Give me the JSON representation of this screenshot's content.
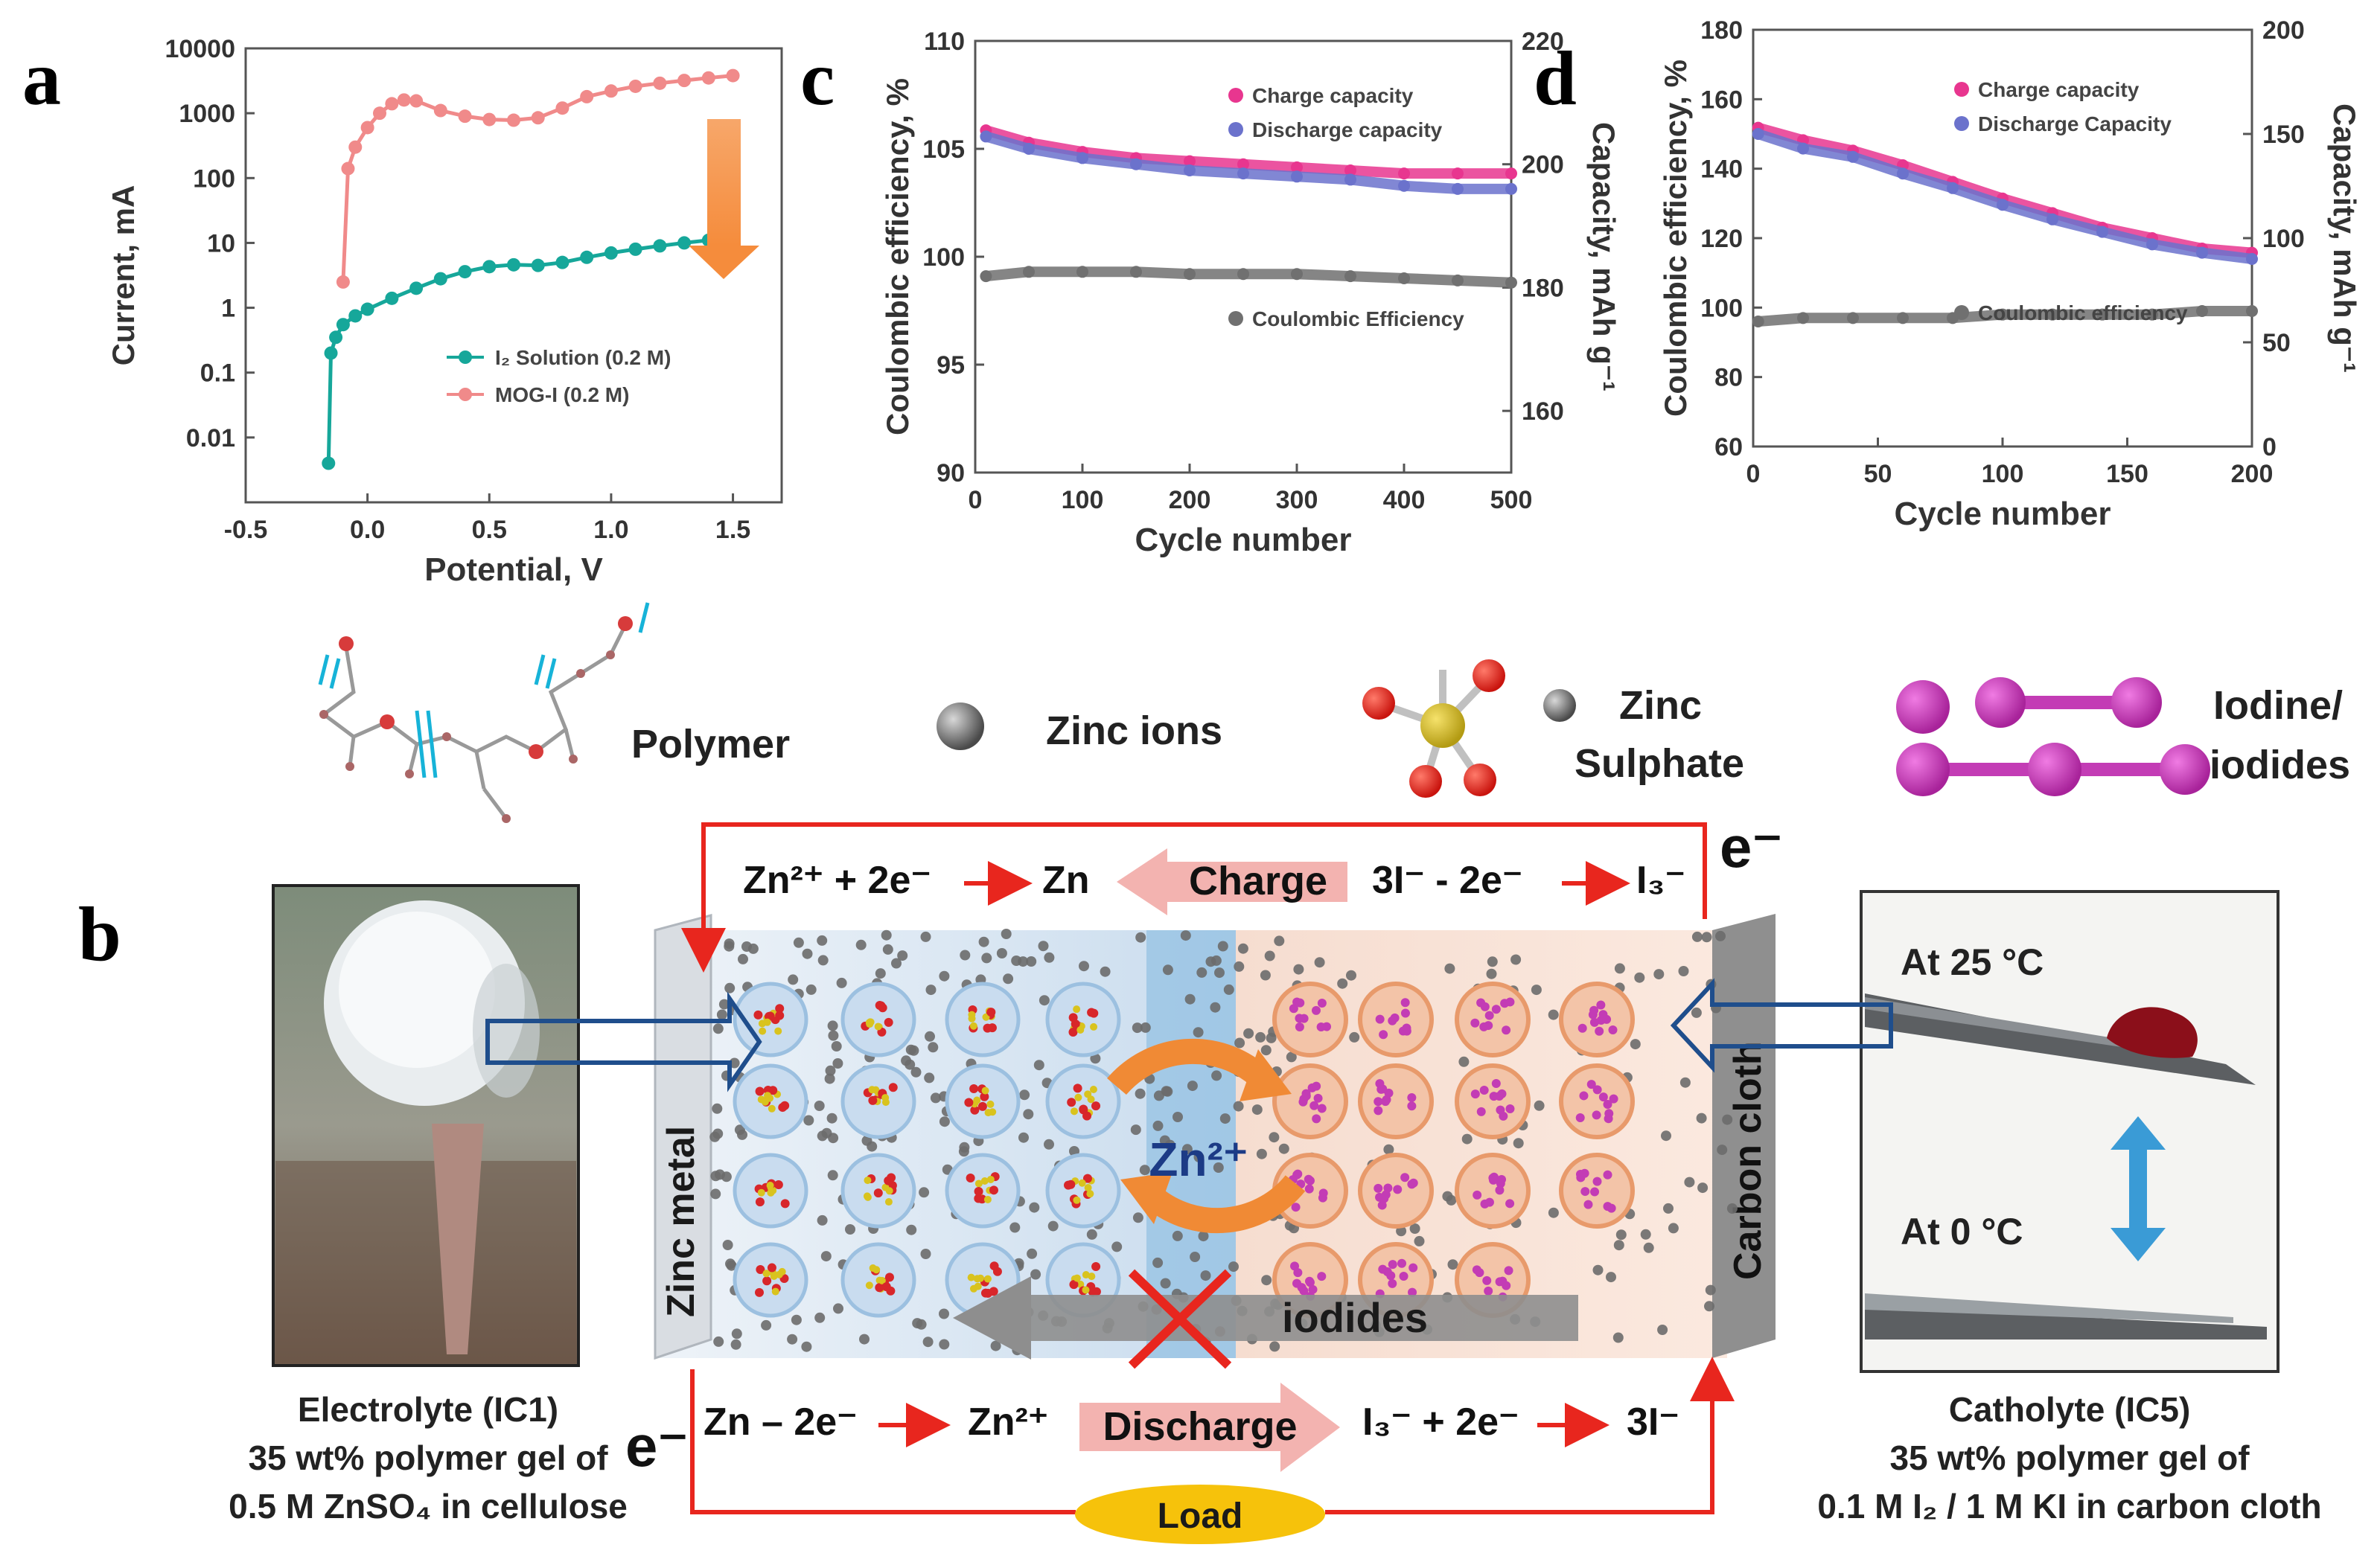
{
  "panel_labels": {
    "a": "a",
    "b": "b",
    "c": "c",
    "d": "d"
  },
  "chart_data": [
    {
      "type": "line",
      "panel": "a",
      "xlabel": "Potential, V",
      "ylabel": "Current, mA",
      "yscale": "log",
      "xlim": [
        -0.5,
        1.7
      ],
      "ylim": [
        0.001,
        10000
      ],
      "xticks": [
        "-0.5",
        "0.0",
        "0.5",
        "1.0",
        "1.5"
      ],
      "yticks": [
        "10000",
        "1000",
        "100",
        "10",
        "1",
        "0.1",
        "0.01"
      ],
      "legend_position": "lower-right",
      "series": [
        {
          "name": "I₂ Solution (0.2 M)",
          "color": "#16a79a",
          "x": [
            -0.16,
            -0.15,
            -0.13,
            -0.1,
            -0.05,
            0.0,
            0.1,
            0.2,
            0.3,
            0.4,
            0.5,
            0.6,
            0.7,
            0.8,
            0.9,
            1.0,
            1.1,
            1.2,
            1.3,
            1.4,
            1.5
          ],
          "y": [
            0.004,
            0.2,
            0.35,
            0.55,
            0.75,
            0.95,
            1.4,
            2.0,
            2.8,
            3.6,
            4.3,
            4.6,
            4.5,
            5.0,
            6.0,
            7.0,
            8.0,
            9.0,
            10.0,
            11.0,
            12.0
          ]
        },
        {
          "name": "MOG-I (0.2 M)",
          "color": "#f08a8a",
          "x": [
            -0.1,
            -0.08,
            -0.05,
            0.0,
            0.05,
            0.1,
            0.15,
            0.2,
            0.3,
            0.4,
            0.5,
            0.6,
            0.7,
            0.8,
            0.9,
            1.0,
            1.1,
            1.2,
            1.3,
            1.4,
            1.5
          ],
          "y": [
            2.5,
            140,
            300,
            600,
            1000,
            1400,
            1600,
            1550,
            1100,
            900,
            800,
            780,
            850,
            1200,
            1800,
            2200,
            2600,
            2900,
            3200,
            3500,
            3800
          ]
        }
      ]
    },
    {
      "type": "scatter",
      "panel": "c",
      "xlabel": "Cycle number",
      "ylabel": "Coulombic efficiency, %",
      "ylabel_right": "Capacity, mAh g⁻¹",
      "xlim": [
        0,
        500
      ],
      "ylim": [
        90,
        110
      ],
      "ylim_right": [
        150,
        220
      ],
      "xticks": [
        "0",
        "100",
        "200",
        "300",
        "400",
        "500"
      ],
      "yticks": [
        "110",
        "105",
        "100",
        "95",
        "90"
      ],
      "yticks_right": [
        "220",
        "200",
        "180",
        "160"
      ],
      "series": [
        {
          "name": "Charge capacity",
          "axis": "right",
          "color": "#e8368f",
          "x": [
            10,
            50,
            100,
            150,
            200,
            250,
            300,
            350,
            400,
            450,
            500
          ],
          "y": [
            205.5,
            203.5,
            202,
            201,
            200.5,
            200,
            199.5,
            199,
            198.5,
            198.5,
            198.5
          ]
        },
        {
          "name": "Discharge capacity",
          "axis": "right",
          "color": "#6b72cc",
          "x": [
            10,
            50,
            100,
            150,
            200,
            250,
            300,
            350,
            400,
            450,
            500
          ],
          "y": [
            204.5,
            202.5,
            201,
            200,
            199,
            198.5,
            198,
            197.5,
            196.5,
            196,
            196
          ]
        },
        {
          "name": "Coulombic Efficiency",
          "axis": "left",
          "color": "#707070",
          "x": [
            10,
            50,
            100,
            150,
            200,
            250,
            300,
            350,
            400,
            450,
            500
          ],
          "y": [
            99.1,
            99.3,
            99.3,
            99.3,
            99.2,
            99.2,
            99.2,
            99.1,
            99.0,
            98.9,
            98.8
          ]
        }
      ]
    },
    {
      "type": "scatter",
      "panel": "d",
      "xlabel": "Cycle number",
      "ylabel": "Coulombic efficiency, %",
      "ylabel_right": "Capacity, mAh g⁻¹",
      "xlim": [
        0,
        200
      ],
      "ylim": [
        60,
        180
      ],
      "ylim_right": [
        0,
        200
      ],
      "xticks": [
        "0",
        "50",
        "100",
        "150",
        "200"
      ],
      "yticks": [
        "180",
        "160",
        "140",
        "120",
        "100",
        "80",
        "60"
      ],
      "yticks_right": [
        "200",
        "150",
        "100",
        "50",
        "0"
      ],
      "series": [
        {
          "name": "Charge capacity",
          "axis": "right",
          "color": "#e8368f",
          "x": [
            2,
            20,
            40,
            60,
            80,
            100,
            120,
            140,
            160,
            180,
            200
          ],
          "y": [
            153,
            147,
            142,
            135,
            127,
            119,
            112,
            105,
            100,
            95,
            93
          ]
        },
        {
          "name": "Discharge Capacity",
          "axis": "right",
          "color": "#6b72cc",
          "x": [
            2,
            20,
            40,
            60,
            80,
            100,
            120,
            140,
            160,
            180,
            200
          ],
          "y": [
            150,
            143,
            139,
            131,
            124,
            116,
            109,
            103,
            97,
            93,
            90
          ]
        },
        {
          "name": "Coulombic efficiency",
          "axis": "left",
          "color": "#707070",
          "x": [
            2,
            20,
            40,
            60,
            80,
            100,
            120,
            140,
            160,
            180,
            200
          ],
          "y": [
            96,
            97,
            97,
            97,
            97,
            98,
            98,
            98,
            98,
            99,
            99
          ]
        }
      ]
    }
  ],
  "legend_b": {
    "polymer": "Polymer",
    "zinc_ions": "Zinc ions",
    "zinc_sulphate_1": "Zinc",
    "zinc_sulphate_2": "Sulphate",
    "iodine_1": "Iodine/",
    "iodine_2": "iodides"
  },
  "cell": {
    "charge_left": "Zn²⁺ + 2e⁻",
    "charge_left_product": "Zn",
    "charge_label": "Charge",
    "charge_right": "3I⁻ - 2e⁻",
    "charge_right_product": "I₃⁻",
    "electron_top": "e⁻",
    "electron_bottom": "e⁻",
    "discharge_left": "Zn – 2e⁻",
    "discharge_left_product": "Zn²⁺",
    "discharge_label": "Discharge",
    "discharge_right": "I₃⁻ + 2e⁻",
    "discharge_right_product": "3I⁻",
    "load": "Load",
    "zinc_metal": "Zinc metal",
    "carbon_cloth": "Carbon cloth",
    "zn2plus": "Zn²⁺",
    "iodides": "iodides"
  },
  "captions": {
    "electrolyte": [
      "Electrolyte (IC1)",
      "35 wt% polymer gel of",
      "0.5 M ZnSO₄ in cellulose"
    ],
    "catholyte": [
      "Catholyte (IC5)",
      "35 wt% polymer gel of",
      "0.1 M I₂ / 1 M KI in carbon cloth"
    ],
    "temp_25": "At 25 °C",
    "temp_0": "At 0 °C"
  },
  "colors": {
    "red": "#e8261e",
    "navy": "#1f4e8c",
    "orange": "#f4a15d",
    "pink_arrow": "#f3b3b0",
    "magenta": "#c33cb5",
    "zinc_grey": "#6b6b6b"
  }
}
